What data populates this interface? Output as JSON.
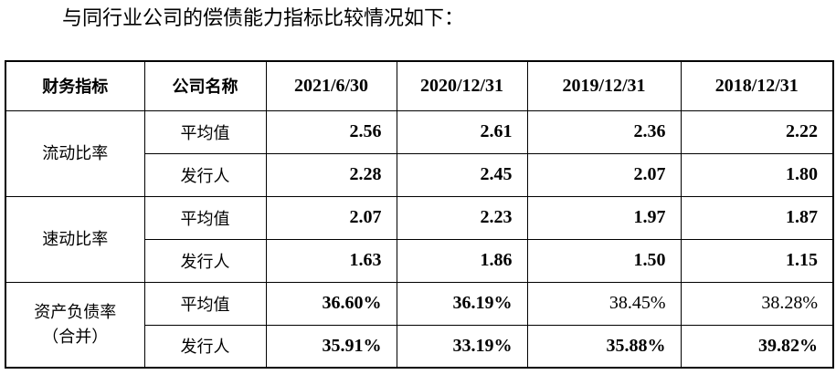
{
  "intro": "与同行业公司的偿债能力指标比较情况如下：",
  "table": {
    "headers": [
      "财务指标",
      "公司名称",
      "2021/6/30",
      "2020/12/31",
      "2019/12/31",
      "2018/12/31"
    ],
    "groups": [
      {
        "label_lines": [
          "流动比率"
        ],
        "rows": [
          {
            "company": "平均值",
            "values": [
              "2.56",
              "2.61",
              "2.36",
              "2.22"
            ],
            "bold": [
              true,
              true,
              true,
              true
            ]
          },
          {
            "company": "发行人",
            "values": [
              "2.28",
              "2.45",
              "2.07",
              "1.80"
            ],
            "bold": [
              true,
              true,
              true,
              true
            ]
          }
        ]
      },
      {
        "label_lines": [
          "速动比率"
        ],
        "rows": [
          {
            "company": "平均值",
            "values": [
              "2.07",
              "2.23",
              "1.97",
              "1.87"
            ],
            "bold": [
              true,
              true,
              true,
              true
            ]
          },
          {
            "company": "发行人",
            "values": [
              "1.63",
              "1.86",
              "1.50",
              "1.15"
            ],
            "bold": [
              true,
              true,
              true,
              true
            ]
          }
        ]
      },
      {
        "label_lines": [
          "资产负债率",
          "（合并）"
        ],
        "rows": [
          {
            "company": "平均值",
            "values": [
              "36.60%",
              "36.19%",
              "38.45%",
              "38.28%"
            ],
            "bold": [
              true,
              true,
              false,
              false
            ]
          },
          {
            "company": "发行人",
            "values": [
              "35.91%",
              "33.19%",
              "35.88%",
              "39.82%"
            ],
            "bold": [
              true,
              true,
              true,
              true
            ]
          }
        ]
      }
    ]
  }
}
